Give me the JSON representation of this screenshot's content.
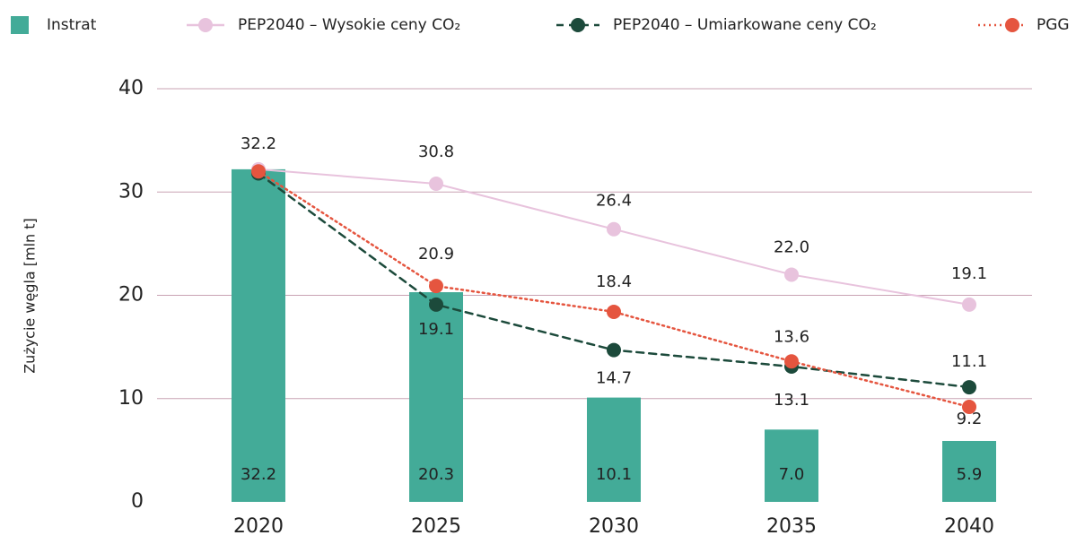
{
  "chart_data": {
    "type": "bar_line",
    "y_label": "Zużycie węgla [mln t]",
    "categories": [
      "2020",
      "2025",
      "2030",
      "2035",
      "2040"
    ],
    "ylim": [
      0,
      40
    ],
    "yticks": [
      0,
      10,
      20,
      30,
      40
    ],
    "grid": true,
    "legend": "top",
    "series": [
      {
        "name": "Instrat",
        "kind": "bar",
        "color": "#43ab98",
        "values": [
          32.2,
          20.3,
          10.1,
          7.0,
          5.9
        ],
        "value_labels": [
          "32.2",
          "20.3",
          "10.1",
          "7.0",
          "5.9"
        ]
      },
      {
        "name": "PEP2040 – Wysokie ceny CO₂",
        "kind": "line",
        "line_style": "solid",
        "color": "#e8c3dd",
        "values": [
          32.2,
          30.8,
          26.4,
          22.0,
          19.1
        ],
        "value_labels": [
          "32.2",
          "30.8",
          "26.4",
          "22.0",
          "19.1"
        ]
      },
      {
        "name": "PEP2040 – Umiarkowane ceny CO₂",
        "kind": "line",
        "line_style": "dashed",
        "color": "#1c4a3b",
        "values": [
          31.8,
          19.1,
          14.7,
          13.1,
          11.1
        ],
        "value_labels": [
          null,
          "19.1",
          "14.7",
          "13.1",
          "11.1"
        ]
      },
      {
        "name": "PGG",
        "kind": "line",
        "line_style": "dotted",
        "color": "#e5553f",
        "values": [
          32.0,
          20.9,
          18.4,
          13.6,
          9.2
        ],
        "value_labels": [
          null,
          "20.9",
          "18.4",
          "13.6",
          "9.2"
        ]
      }
    ]
  }
}
